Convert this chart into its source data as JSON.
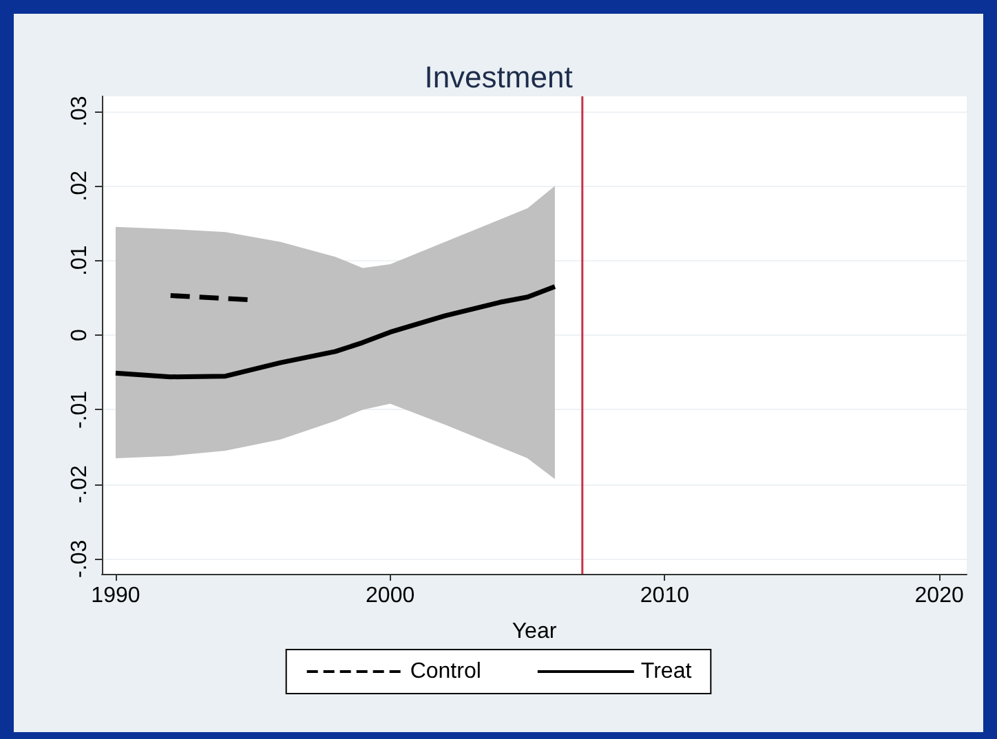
{
  "chart_data": {
    "type": "line",
    "title": "Investment",
    "xlabel": "Year",
    "xlim": [
      1989.5,
      2021
    ],
    "xticks": [
      1990,
      2000,
      2010,
      2020
    ],
    "ylim": [
      -0.032,
      0.032
    ],
    "yticks": [
      {
        "value": -0.03,
        "label": "-.03"
      },
      {
        "value": -0.02,
        "label": "-.02"
      },
      {
        "value": -0.01,
        "label": "-.01"
      },
      {
        "value": 0,
        "label": "0"
      },
      {
        "value": 0.01,
        "label": ".01"
      },
      {
        "value": 0.02,
        "label": ".02"
      },
      {
        "value": 0.03,
        "label": ".03"
      }
    ],
    "series": [
      {
        "name": "Control",
        "color": "#000000",
        "line_style": "dashed",
        "x": [
          1992,
          1995
        ],
        "values": [
          0.0053,
          0.0047
        ]
      },
      {
        "name": "Treat",
        "color": "#000000",
        "line_style": "solid",
        "x": [
          1990,
          1992,
          1994,
          1996,
          1998,
          1999,
          2000,
          2002,
          2004,
          2005,
          2006
        ],
        "values": [
          -0.0051,
          -0.0056,
          -0.0055,
          -0.0037,
          -0.0022,
          -0.001,
          0.0004,
          0.0026,
          0.0044,
          0.0051,
          0.0065
        ],
        "lower": [
          -0.0165,
          -0.0162,
          -0.0155,
          -0.014,
          -0.0115,
          -0.01,
          -0.0092,
          -0.012,
          -0.015,
          -0.0165,
          -0.0193
        ],
        "upper": [
          0.0145,
          0.0142,
          0.0138,
          0.0125,
          0.0105,
          0.009,
          0.0095,
          0.0125,
          0.0155,
          0.017,
          0.02
        ]
      }
    ],
    "ref_lines": [
      {
        "axis": "x",
        "value": 2007,
        "color": "#c8324a"
      }
    ],
    "grid": "y",
    "legend": "bottom",
    "marker": "none"
  }
}
